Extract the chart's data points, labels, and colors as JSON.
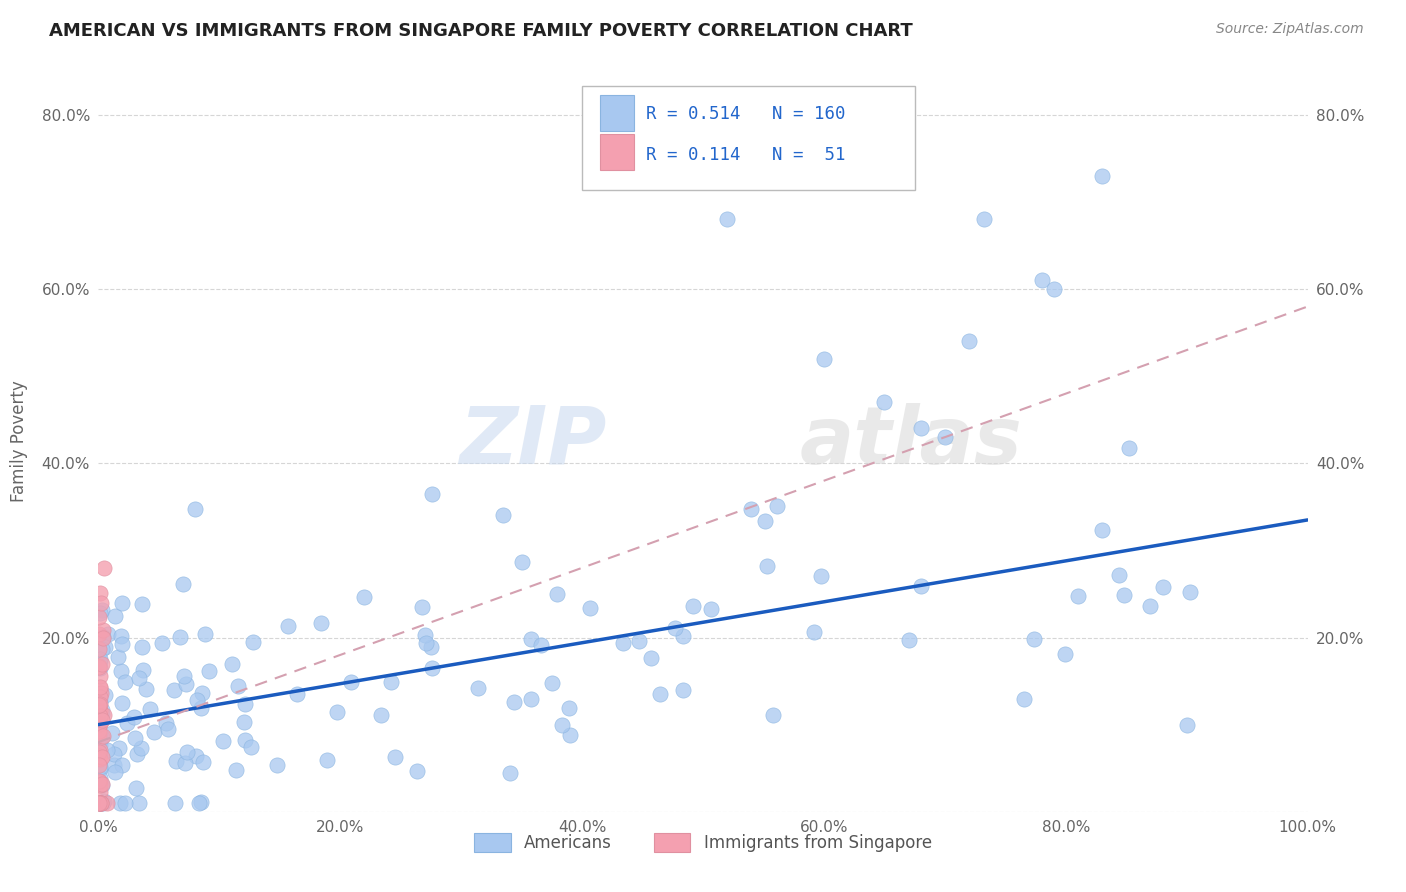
{
  "title": "AMERICAN VS IMMIGRANTS FROM SINGAPORE FAMILY POVERTY CORRELATION CHART",
  "source": "Source: ZipAtlas.com",
  "ylabel": "Family Poverty",
  "watermark_zip": "ZIP",
  "watermark_atlas": "atlas",
  "legend_label1": "Americans",
  "legend_label2": "Immigrants from Singapore",
  "blue_color": "#a8c8f0",
  "pink_color": "#f4a0b0",
  "blue_line_color": "#1a5bbf",
  "pink_line_color": "#d4a0b0",
  "r1": 0.514,
  "n1": 160,
  "r2": 0.114,
  "n2": 51,
  "xlim": [
    0.0,
    1.0
  ],
  "ylim": [
    0.0,
    0.85
  ],
  "xticks": [
    0.0,
    0.2,
    0.4,
    0.6,
    0.8,
    1.0
  ],
  "yticks": [
    0.0,
    0.2,
    0.4,
    0.6,
    0.8
  ],
  "xticklabels": [
    "0.0%",
    "20.0%",
    "40.0%",
    "60.0%",
    "80.0%",
    "100.0%"
  ],
  "yticklabels": [
    "",
    "20.0%",
    "40.0%",
    "60.0%",
    "80.0%"
  ],
  "blue_line_x0": 0.0,
  "blue_line_y0": 0.1,
  "blue_line_x1": 1.0,
  "blue_line_y1": 0.335,
  "pink_line_x0": 0.0,
  "pink_line_y0": 0.08,
  "pink_line_x1": 1.0,
  "pink_line_y1": 0.58
}
